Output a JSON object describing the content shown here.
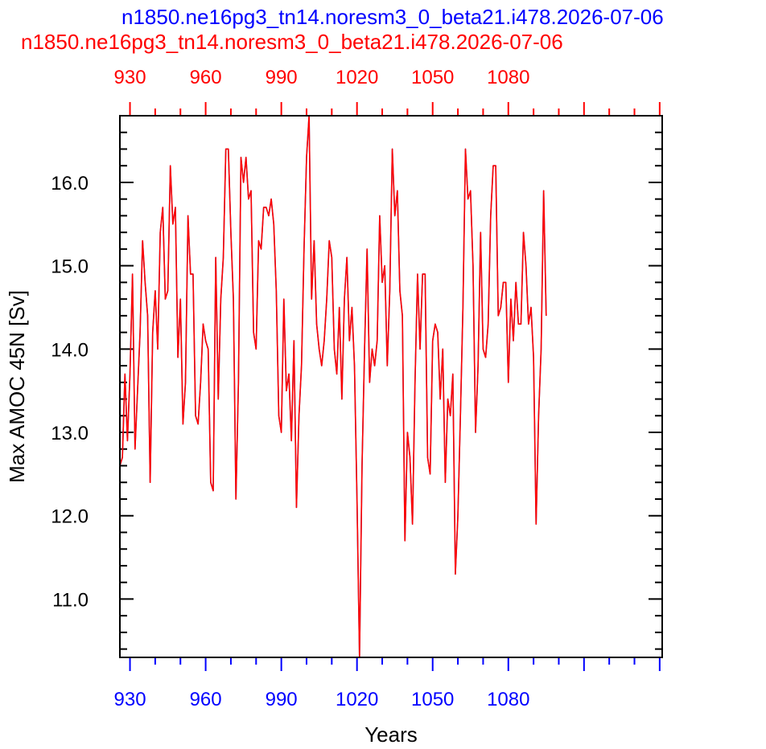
{
  "chart_data": {
    "type": "line",
    "titles": [
      {
        "text": "n1850.ne16pg3_tn14.noresm3_0_beta21.i478.2026-07-06",
        "color": "#0000ff"
      },
      {
        "text": "n1850.ne16pg3_tn14.noresm3_0_beta21.i478.2026-07-06",
        "color": "#ff0000"
      }
    ],
    "xlabel": "Years",
    "ylabel": "Max AMOC 45N [Sv]",
    "xlim": [
      926,
      1141
    ],
    "ylim": [
      10.3,
      16.8
    ],
    "x_top_ticks": [
      "930",
      "960",
      "990",
      "1020",
      "1050",
      "1080"
    ],
    "x_bottom_ticks": [
      "930",
      "960",
      "990",
      "1020",
      "1050",
      "1080"
    ],
    "y_ticks": [
      "11.0",
      "12.0",
      "13.0",
      "14.0",
      "15.0",
      "16.0"
    ],
    "x_start": 926,
    "series": [
      {
        "color": "#2f6fd0",
        "values": [
          12.6,
          12.7,
          13.7,
          12.9,
          13.7,
          14.9,
          12.8,
          13.5,
          14.2,
          15.3,
          14.8,
          14.4,
          12.4,
          14.2,
          14.7,
          14.0,
          15.4,
          15.7,
          14.6,
          14.7,
          16.2,
          15.5,
          15.7,
          13.9,
          14.6,
          13.1,
          13.6,
          15.6,
          14.9,
          14.9,
          13.2,
          13.1,
          13.6,
          14.3,
          14.1,
          14.0,
          12.4,
          12.3,
          15.1,
          13.4,
          14.6,
          15.1,
          16.4,
          16.4,
          15.4,
          14.6,
          12.2,
          13.6,
          16.3,
          16.0,
          16.3,
          15.8,
          15.9,
          14.2,
          14.0,
          15.3,
          15.2,
          15.7,
          15.7,
          15.6,
          15.8,
          15.5,
          14.7,
          13.2,
          13.0,
          14.6,
          13.5,
          13.7,
          12.9,
          14.1,
          12.1,
          13.2,
          13.8,
          15.2,
          16.3,
          16.8,
          14.6,
          15.3,
          14.3,
          14.0,
          13.8,
          14.1,
          14.6,
          15.3,
          15.1,
          14.0,
          13.7,
          14.5,
          13.4,
          14.6,
          15.1,
          14.1,
          14.5,
          13.8,
          12.2,
          10.3,
          12.6,
          14.0,
          15.2,
          13.6,
          14.0,
          13.8,
          14.1,
          15.6,
          14.8,
          15.0,
          13.8,
          14.7,
          16.4,
          15.6,
          15.9,
          14.7,
          14.4,
          11.7,
          13.0,
          12.7,
          11.9,
          13.6,
          14.9,
          14.0,
          14.9,
          14.9,
          12.7,
          12.5,
          14.1,
          14.3,
          14.2,
          13.4,
          14.0,
          12.4,
          13.4,
          13.2,
          13.7,
          11.3,
          12.0,
          13.2,
          14.5,
          16.4,
          15.8,
          15.9,
          15.0,
          13.0,
          13.8,
          15.4,
          14.0,
          13.9,
          14.3,
          15.6,
          16.2,
          16.2,
          14.4,
          14.5,
          14.8,
          14.8,
          13.6,
          14.6,
          14.1,
          14.8,
          14.3,
          14.3,
          15.4,
          15.0,
          14.3,
          14.5,
          13.9,
          11.9,
          13.2,
          14.0,
          15.9,
          14.4
        ]
      },
      {
        "color": "#ff0000",
        "values": [
          12.6,
          12.7,
          13.7,
          12.9,
          13.7,
          14.9,
          12.8,
          13.5,
          14.2,
          15.3,
          14.8,
          14.4,
          12.4,
          14.2,
          14.7,
          14.0,
          15.4,
          15.7,
          14.6,
          14.7,
          16.2,
          15.5,
          15.7,
          13.9,
          14.6,
          13.1,
          13.6,
          15.6,
          14.9,
          14.9,
          13.2,
          13.1,
          13.6,
          14.3,
          14.1,
          14.0,
          12.4,
          12.3,
          15.1,
          13.4,
          14.6,
          15.1,
          16.4,
          16.4,
          15.4,
          14.6,
          12.2,
          13.6,
          16.3,
          16.0,
          16.3,
          15.8,
          15.9,
          14.2,
          14.0,
          15.3,
          15.2,
          15.7,
          15.7,
          15.6,
          15.8,
          15.5,
          14.7,
          13.2,
          13.0,
          14.6,
          13.5,
          13.7,
          12.9,
          14.1,
          12.1,
          13.2,
          13.8,
          15.2,
          16.3,
          16.8,
          14.6,
          15.3,
          14.3,
          14.0,
          13.8,
          14.1,
          14.6,
          15.3,
          15.1,
          14.0,
          13.7,
          14.5,
          13.4,
          14.6,
          15.1,
          14.1,
          14.5,
          13.8,
          12.2,
          10.3,
          12.6,
          14.0,
          15.2,
          13.6,
          14.0,
          13.8,
          14.1,
          15.6,
          14.8,
          15.0,
          13.8,
          14.7,
          16.4,
          15.6,
          15.9,
          14.7,
          14.4,
          11.7,
          13.0,
          12.7,
          11.9,
          13.6,
          14.9,
          14.0,
          14.9,
          14.9,
          12.7,
          12.5,
          14.1,
          14.3,
          14.2,
          13.4,
          14.0,
          12.4,
          13.4,
          13.2,
          13.7,
          11.3,
          12.0,
          13.2,
          14.5,
          16.4,
          15.8,
          15.9,
          15.0,
          13.0,
          13.8,
          15.4,
          14.0,
          13.9,
          14.3,
          15.6,
          16.2,
          16.2,
          14.4,
          14.5,
          14.8,
          14.8,
          13.6,
          14.6,
          14.1,
          14.8,
          14.3,
          14.3,
          15.4,
          15.0,
          14.3,
          14.5,
          13.9,
          11.9,
          13.2,
          14.0,
          15.9,
          14.4
        ]
      }
    ]
  }
}
